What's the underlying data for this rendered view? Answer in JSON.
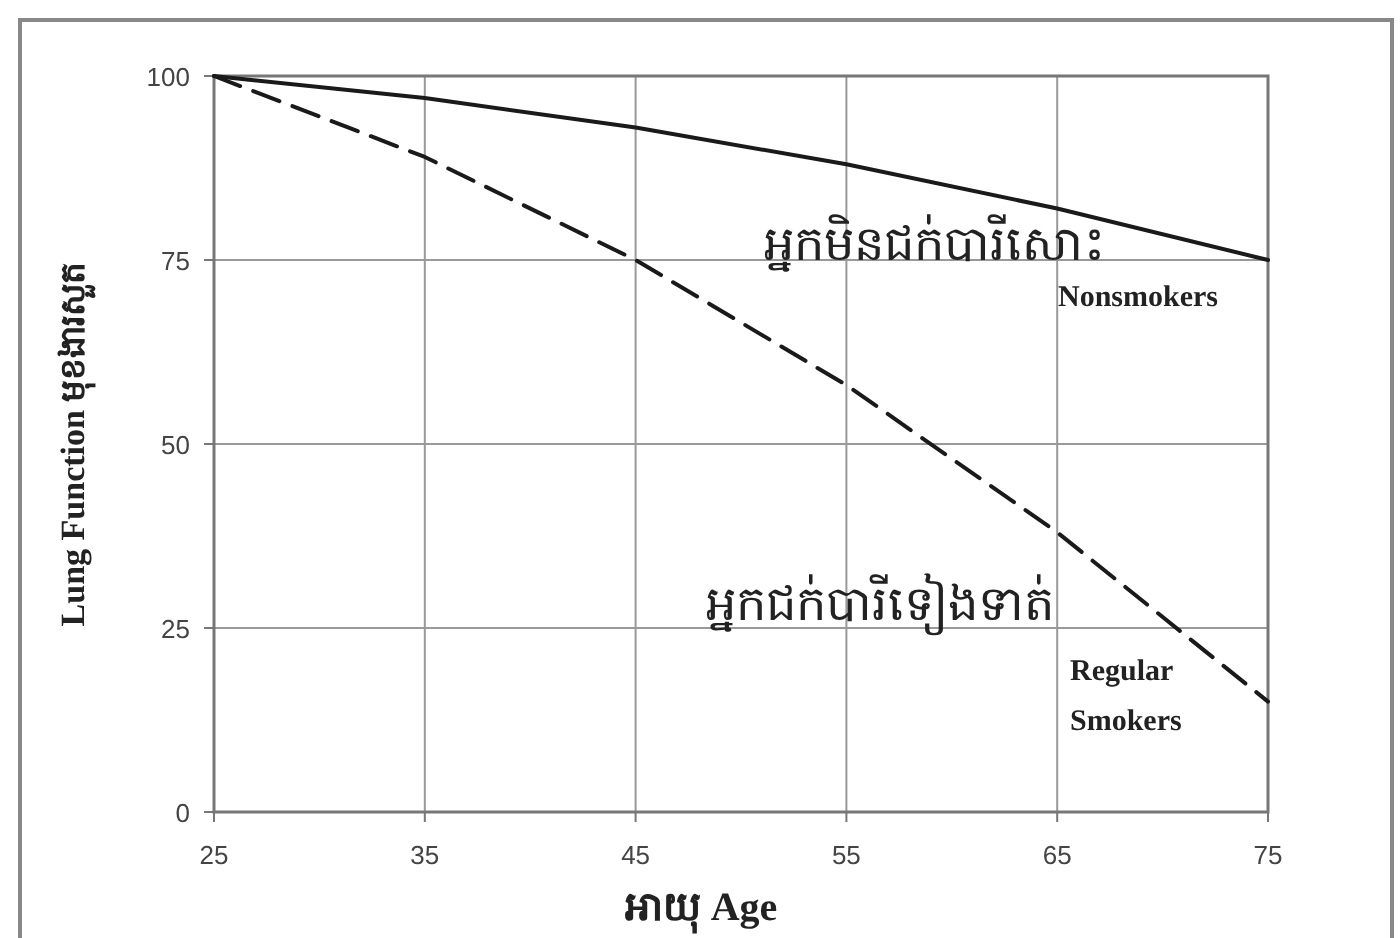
{
  "chart_data": {
    "type": "line",
    "xlabel": "អាយុ Age",
    "ylabel": "Lung Function មុខងារសួត",
    "x": [
      25,
      35,
      45,
      55,
      65,
      75
    ],
    "series": [
      {
        "color": "#1a1a1a",
        "line_style": "solid",
        "values": [
          100,
          97,
          93,
          88,
          82,
          75
        ]
      },
      {
        "color": "#1a1a1a",
        "line_style": "dashed",
        "values": [
          100,
          89,
          75,
          58,
          38,
          15
        ]
      }
    ],
    "xlim": [
      25,
      75
    ],
    "xticks": [
      25,
      35,
      45,
      55,
      65,
      75
    ],
    "ylim": [
      0,
      100
    ],
    "yticks": [
      0,
      25,
      50,
      75,
      100
    ],
    "grid": true,
    "marker": "none",
    "annotations": [
      "អ្នកមិនជក់បារីសោះ",
      "Nonsmokers",
      "អ្នកជក់បារីទៀងទាត់",
      "Regular",
      "Smokers"
    ]
  }
}
